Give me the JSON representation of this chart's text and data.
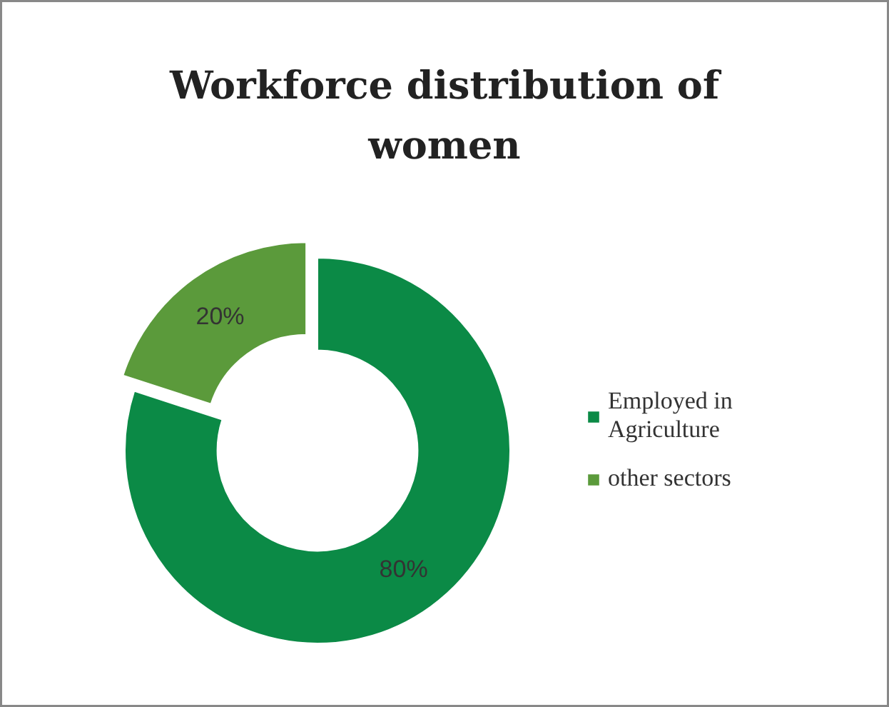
{
  "chart_data": {
    "type": "donut",
    "title": "Workforce distribution of women",
    "categories": [
      "Employed in Agriculture",
      "other sectors"
    ],
    "values": [
      80,
      20
    ],
    "colors": [
      "#0b8a46",
      "#5b9a3b"
    ],
    "value_labels": [
      "80%",
      "20%"
    ],
    "legend": "right"
  }
}
